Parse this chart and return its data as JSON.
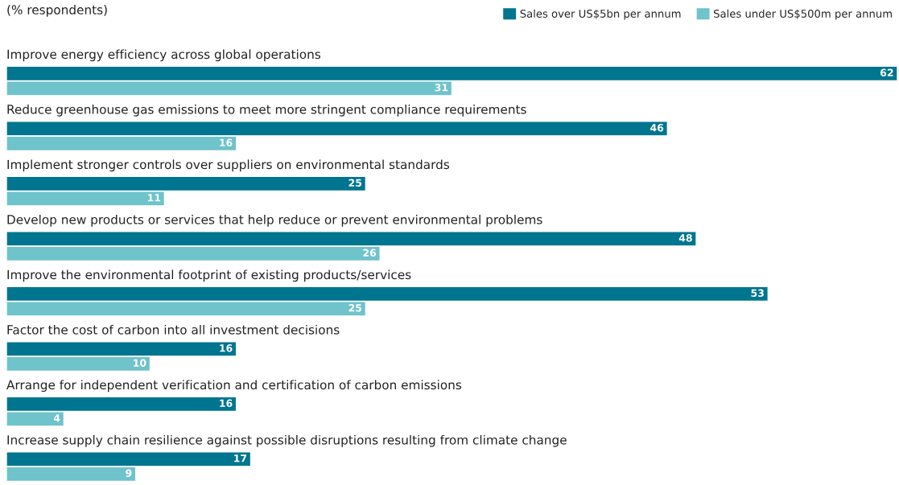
{
  "chart_data": {
    "type": "bar",
    "orientation": "horizontal",
    "title": "(% respondents)",
    "categories": [
      "Improve energy efficiency across global operations",
      "Reduce greenhouse gas emissions to meet more stringent compliance requirements",
      "Implement stronger controls over suppliers on environmental standards",
      "Develop new products or services that help reduce or prevent environmental problems",
      "Improve the environmental footprint of existing products/services",
      "Factor the cost of carbon into all investment decisions",
      "Arrange for independent verification and certification of carbon emissions",
      "Increase supply chain resilience against possible disruptions resulting from climate change"
    ],
    "series": [
      {
        "name": "Sales over US$5bn per annum",
        "color": "#00758f",
        "values": [
          62,
          46,
          25,
          48,
          53,
          16,
          16,
          17
        ]
      },
      {
        "name": "Sales under US$500m per annum",
        "color": "#6fc3cb",
        "values": [
          31,
          16,
          11,
          26,
          25,
          10,
          4,
          9
        ]
      }
    ],
    "data_labels": true,
    "legend": "top right",
    "tick_labels": false
  }
}
